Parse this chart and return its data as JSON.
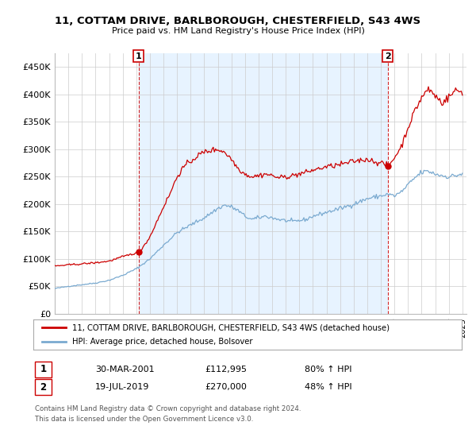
{
  "title": "11, COTTAM DRIVE, BARLBOROUGH, CHESTERFIELD, S43 4WS",
  "subtitle": "Price paid vs. HM Land Registry's House Price Index (HPI)",
  "legend_line1": "11, COTTAM DRIVE, BARLBOROUGH, CHESTERFIELD, S43 4WS (detached house)",
  "legend_line2": "HPI: Average price, detached house, Bolsover",
  "annotation1_label": "1",
  "annotation1_date": "30-MAR-2001",
  "annotation1_price": "£112,995",
  "annotation1_hpi": "80% ↑ HPI",
  "annotation2_label": "2",
  "annotation2_date": "19-JUL-2019",
  "annotation2_price": "£270,000",
  "annotation2_hpi": "48% ↑ HPI",
  "footer1": "Contains HM Land Registry data © Crown copyright and database right 2024.",
  "footer2": "This data is licensed under the Open Government Licence v3.0.",
  "property_color": "#cc0000",
  "hpi_color": "#6699cc",
  "hpi_line_color": "#7aaad0",
  "dashed_vline_color": "#cc0000",
  "shade_color": "#ddeeff",
  "background_color": "#ffffff",
  "ylim": [
    0,
    475000
  ],
  "yticks": [
    0,
    50000,
    100000,
    150000,
    200000,
    250000,
    300000,
    350000,
    400000,
    450000
  ],
  "ytick_labels": [
    "£0",
    "£50K",
    "£100K",
    "£150K",
    "£200K",
    "£250K",
    "£300K",
    "£350K",
    "£400K",
    "£450K"
  ]
}
